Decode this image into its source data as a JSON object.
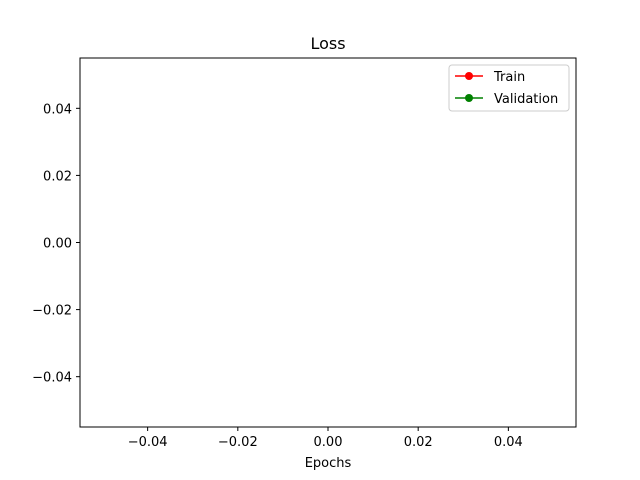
{
  "chart_data": {
    "type": "line",
    "title": "Loss",
    "xlabel": "Epochs",
    "ylabel": "",
    "xlim": [
      -0.055,
      0.055
    ],
    "ylim": [
      -0.055,
      0.055
    ],
    "xticks": [
      -0.04,
      -0.02,
      0.0,
      0.02,
      0.04
    ],
    "yticks": [
      -0.04,
      -0.02,
      0.0,
      0.02,
      0.04
    ],
    "xtick_labels": [
      "−0.04",
      "−0.02",
      "0.00",
      "0.02",
      "0.04"
    ],
    "ytick_labels": [
      "−0.04",
      "−0.02",
      "0.00",
      "0.02",
      "0.04"
    ],
    "grid": false,
    "legend_position": "top-right",
    "series": [
      {
        "name": "Train",
        "color": "#ff0000",
        "marker": "circle",
        "x": [],
        "y": []
      },
      {
        "name": "Validation",
        "color": "#008000",
        "marker": "circle",
        "x": [],
        "y": []
      }
    ]
  }
}
